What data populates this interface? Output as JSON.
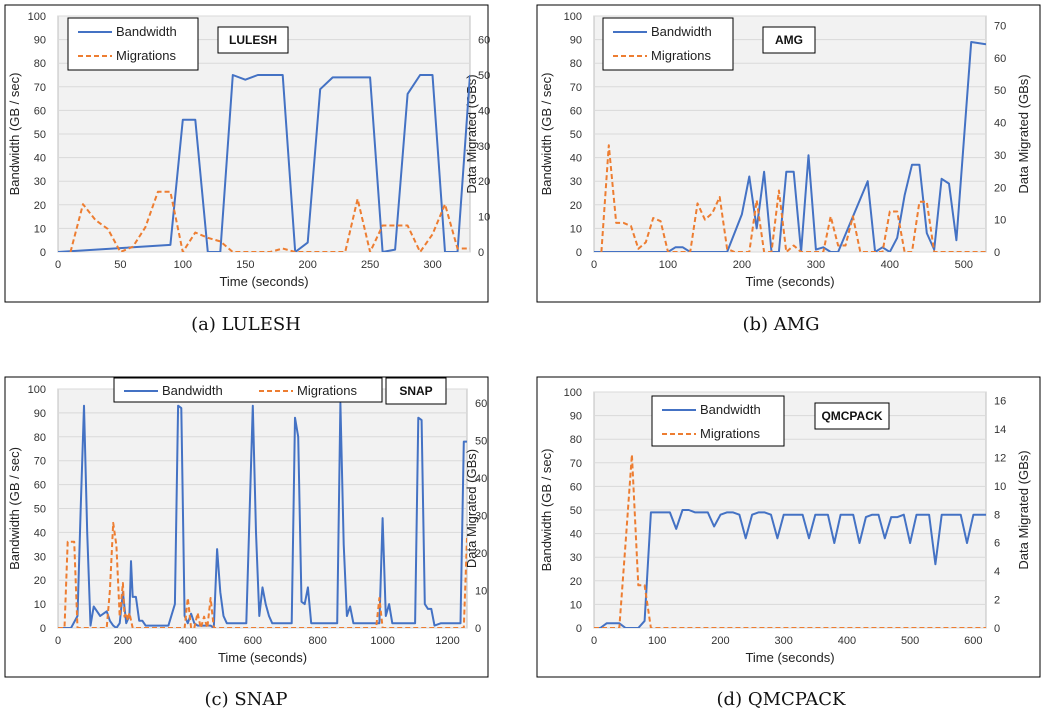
{
  "chart_data": [
    {
      "type": "line",
      "title": "LULESH",
      "caption": "(a) LULESH",
      "xlabel": "Time (seconds)",
      "ylabel": "Bandwidth (GB / sec)",
      "y2label": "Data Migrated (GBs)",
      "xlim": [
        0,
        330
      ],
      "xticks": [
        0,
        50,
        100,
        150,
        200,
        250,
        300
      ],
      "ylim": [
        0,
        100
      ],
      "yticks": [
        0,
        10,
        20,
        30,
        40,
        50,
        60,
        70,
        80,
        90,
        100
      ],
      "y2lim": [
        0,
        66.67
      ],
      "y2ticks": [
        0,
        10,
        20,
        30,
        40,
        50,
        60
      ],
      "legend": "top-left",
      "colors": {
        "Bandwidth": "#4472C4",
        "Migrations": "#ED7D31"
      },
      "series": [
        {
          "name": "Bandwidth",
          "axis": "left",
          "style": "solid",
          "x": [
            0,
            90,
            100,
            110,
            120,
            130,
            140,
            150,
            160,
            170,
            180,
            190,
            200,
            210,
            220,
            240,
            250,
            260,
            270,
            280,
            290,
            300,
            310,
            320,
            330
          ],
          "y": [
            0,
            3,
            56,
            56,
            0,
            0,
            75,
            73,
            75,
            75,
            75,
            0,
            4,
            69,
            74,
            74,
            74,
            0,
            1,
            67,
            75,
            75,
            0,
            0,
            75
          ]
        },
        {
          "name": "Migrations",
          "axis": "right",
          "style": "dashed",
          "x": [
            10,
            20,
            30,
            40,
            50,
            60,
            70,
            80,
            90,
            100,
            110,
            120,
            130,
            140,
            170,
            180,
            190,
            200,
            210,
            220,
            230,
            240,
            250,
            260,
            270,
            280,
            290,
            300,
            310,
            320,
            330
          ],
          "y": [
            0,
            13.5,
            9,
            6.5,
            0,
            1.5,
            7,
            17,
            17,
            0,
            5.5,
            4,
            3,
            0,
            0,
            1,
            0,
            0,
            0,
            0,
            0,
            15,
            0,
            7.5,
            7.5,
            7.5,
            0,
            5,
            13.5,
            1,
            1
          ]
        }
      ]
    },
    {
      "type": "line",
      "title": "AMG",
      "caption": "(b) AMG",
      "xlabel": "Time (seconds)",
      "ylabel": "Bandwidth (GB / sec)",
      "y2label": "Data Migrated (GBs)",
      "xlim": [
        0,
        530
      ],
      "xticks": [
        0,
        100,
        200,
        300,
        400,
        500
      ],
      "ylim": [
        0,
        100
      ],
      "yticks": [
        0,
        10,
        20,
        30,
        40,
        50,
        60,
        70,
        80,
        90,
        100
      ],
      "y2lim": [
        0,
        72.9
      ],
      "y2ticks": [
        0,
        10,
        20,
        30,
        40,
        50,
        60,
        70
      ],
      "legend": "top-left",
      "colors": {
        "Bandwidth": "#4472C4",
        "Migrations": "#ED7D31"
      },
      "series": [
        {
          "name": "Bandwidth",
          "axis": "left",
          "style": "solid",
          "x": [
            0,
            100,
            110,
            120,
            130,
            180,
            200,
            210,
            220,
            230,
            240,
            250,
            260,
            270,
            280,
            290,
            300,
            310,
            320,
            330,
            370,
            380,
            390,
            400,
            410,
            420,
            430,
            440,
            450,
            460,
            470,
            480,
            490,
            510,
            530
          ],
          "y": [
            0,
            0,
            2,
            2,
            0,
            0,
            16,
            32,
            10,
            34,
            0,
            0,
            34,
            34,
            0,
            41,
            1,
            2,
            0,
            0,
            30,
            0,
            2,
            0,
            6,
            24,
            37,
            37,
            8,
            1,
            31,
            29,
            5,
            89,
            88
          ]
        },
        {
          "name": "Migrations",
          "axis": "right",
          "style": "dashed",
          "x": [
            10,
            20,
            30,
            40,
            50,
            60,
            70,
            80,
            90,
            100,
            130,
            140,
            150,
            160,
            170,
            180,
            190,
            200,
            210,
            220,
            230,
            240,
            250,
            260,
            270,
            280,
            300,
            310,
            320,
            330,
            340,
            350,
            360,
            370,
            380,
            390,
            400,
            410,
            420,
            430,
            440,
            450,
            460,
            470,
            480,
            490,
            500,
            510,
            530
          ],
          "y": [
            0,
            33,
            9,
            9,
            8,
            1,
            3,
            10.5,
            9.5,
            0,
            0,
            15,
            10,
            12,
            17,
            1,
            0,
            0,
            0,
            16,
            0,
            0,
            19,
            0,
            2,
            0,
            0,
            0,
            11,
            2,
            2,
            11,
            0,
            0,
            0,
            0,
            12.5,
            12.5,
            0,
            0,
            15.5,
            15.5,
            0,
            0,
            0,
            0,
            0,
            0,
            0
          ]
        }
      ]
    },
    {
      "type": "line",
      "title": "SNAP",
      "caption": "(c) SNAP",
      "xlabel": "Time (seconds)",
      "ylabel": "Bandwidth (GB / sec)",
      "y2label": "Data Migrated (GBs)",
      "xlim": [
        0,
        1260
      ],
      "xticks": [
        0,
        200,
        400,
        600,
        800,
        1000,
        1200
      ],
      "ylim": [
        0,
        100
      ],
      "yticks": [
        0,
        10,
        20,
        30,
        40,
        50,
        60,
        70,
        80,
        90,
        100
      ],
      "y2lim": [
        0,
        63.7
      ],
      "y2ticks": [
        0,
        10,
        20,
        30,
        40,
        50,
        60
      ],
      "legend": "top-center",
      "colors": {
        "Bandwidth": "#4472C4",
        "Migrations": "#ED7D31"
      },
      "series": [
        {
          "name": "Bandwidth",
          "axis": "left",
          "style": "solid",
          "x": [
            0,
            20,
            40,
            60,
            70,
            80,
            90,
            100,
            110,
            120,
            130,
            140,
            150,
            160,
            170,
            180,
            190,
            200,
            210,
            220,
            225,
            230,
            240,
            250,
            260,
            270,
            280,
            300,
            320,
            340,
            360,
            370,
            380,
            390,
            400,
            410,
            420,
            430,
            440,
            450,
            460,
            470,
            480,
            490,
            500,
            510,
            520,
            540,
            560,
            580,
            600,
            610,
            620,
            630,
            640,
            650,
            660,
            680,
            700,
            720,
            730,
            740,
            750,
            760,
            770,
            780,
            790,
            800,
            820,
            840,
            860,
            870,
            880,
            890,
            900,
            910,
            920,
            940,
            960,
            980,
            990,
            1000,
            1010,
            1020,
            1030,
            1040,
            1060,
            1080,
            1100,
            1110,
            1120,
            1130,
            1140,
            1150,
            1160,
            1180,
            1200,
            1240,
            1250,
            1260
          ],
          "y": [
            0,
            0,
            0,
            5,
            50,
            93,
            40,
            1,
            9,
            7,
            5,
            6,
            7,
            3,
            1,
            0,
            2,
            15,
            2,
            5,
            28,
            13,
            13,
            3,
            3,
            1,
            1,
            1,
            1,
            1,
            10,
            93,
            92,
            5,
            2,
            6,
            2,
            1,
            1,
            1,
            1,
            1,
            0,
            33,
            15,
            5,
            2,
            2,
            2,
            2,
            93,
            40,
            5,
            17,
            10,
            5,
            2,
            2,
            2,
            2,
            88,
            80,
            11,
            10,
            17,
            2,
            2,
            2,
            2,
            2,
            2,
            94,
            35,
            5,
            9,
            2,
            2,
            2,
            2,
            2,
            2,
            46,
            5,
            10,
            2,
            2,
            2,
            2,
            2,
            88,
            87,
            10,
            8,
            8,
            1,
            2,
            2,
            2,
            78,
            78
          ]
        },
        {
          "name": "Migrations",
          "axis": "right",
          "style": "dashed",
          "x": [
            0,
            20,
            30,
            40,
            50,
            60,
            150,
            160,
            170,
            180,
            190,
            200,
            205,
            210,
            215,
            220,
            230,
            240,
            300,
            350,
            360,
            370,
            380,
            390,
            400,
            410,
            420,
            430,
            440,
            450,
            460,
            470,
            480,
            490,
            500,
            900,
            980,
            990,
            1000,
            1240,
            1250,
            1260
          ],
          "y": [
            0,
            0,
            23,
            23,
            23,
            0,
            0,
            10,
            28,
            22,
            3,
            12,
            3,
            4,
            2,
            4,
            0,
            0,
            0,
            0,
            0,
            0,
            0,
            0,
            8,
            0,
            0,
            4,
            0,
            3,
            0,
            8,
            0,
            0,
            0,
            0,
            0,
            8,
            0,
            0,
            0,
            24
          ]
        }
      ]
    },
    {
      "type": "line",
      "title": "QMCPACK",
      "caption": "(d) QMCPACK",
      "xlabel": "Time (seconds)",
      "ylabel": "Bandwidth (GB / sec)",
      "y2label": "Data Migrated (GBs)",
      "xlim": [
        0,
        620
      ],
      "xticks": [
        0,
        100,
        200,
        300,
        400,
        500,
        600
      ],
      "ylim": [
        0,
        100
      ],
      "yticks": [
        0,
        10,
        20,
        30,
        40,
        50,
        60,
        70,
        80,
        90,
        100
      ],
      "y2lim": [
        0,
        16.6
      ],
      "y2ticks": [
        0,
        2,
        4,
        6,
        8,
        10,
        12,
        14,
        16
      ],
      "legend": "top-left",
      "colors": {
        "Bandwidth": "#4472C4",
        "Migrations": "#ED7D31"
      },
      "series": [
        {
          "name": "Bandwidth",
          "axis": "left",
          "style": "solid",
          "x": [
            0,
            10,
            20,
            30,
            40,
            50,
            60,
            70,
            80,
            90,
            100,
            110,
            120,
            130,
            140,
            150,
            160,
            170,
            180,
            190,
            200,
            210,
            220,
            230,
            240,
            250,
            260,
            270,
            280,
            290,
            300,
            310,
            320,
            330,
            340,
            350,
            360,
            370,
            380,
            390,
            400,
            410,
            420,
            430,
            440,
            450,
            460,
            470,
            480,
            490,
            500,
            510,
            520,
            530,
            540,
            550,
            560,
            570,
            580,
            590,
            600,
            610,
            620
          ],
          "y": [
            0,
            0,
            2,
            2,
            2,
            0,
            0,
            0,
            3,
            49,
            49,
            49,
            49,
            42,
            50,
            50,
            49,
            49,
            49,
            43,
            48,
            49,
            49,
            48,
            38,
            48,
            49,
            49,
            48,
            38,
            48,
            48,
            48,
            48,
            38,
            48,
            48,
            48,
            36,
            48,
            48,
            48,
            36,
            47,
            48,
            48,
            38,
            47,
            47,
            48,
            36,
            48,
            48,
            48,
            27,
            48,
            48,
            48,
            48,
            36,
            48,
            48,
            48
          ]
        },
        {
          "name": "Migrations",
          "axis": "right",
          "style": "dashed",
          "x": [
            0,
            30,
            40,
            50,
            60,
            70,
            80,
            90,
            100,
            620
          ],
          "y": [
            0,
            0,
            0,
            6,
            12.2,
            3,
            3,
            0,
            0,
            0
          ]
        }
      ]
    }
  ]
}
